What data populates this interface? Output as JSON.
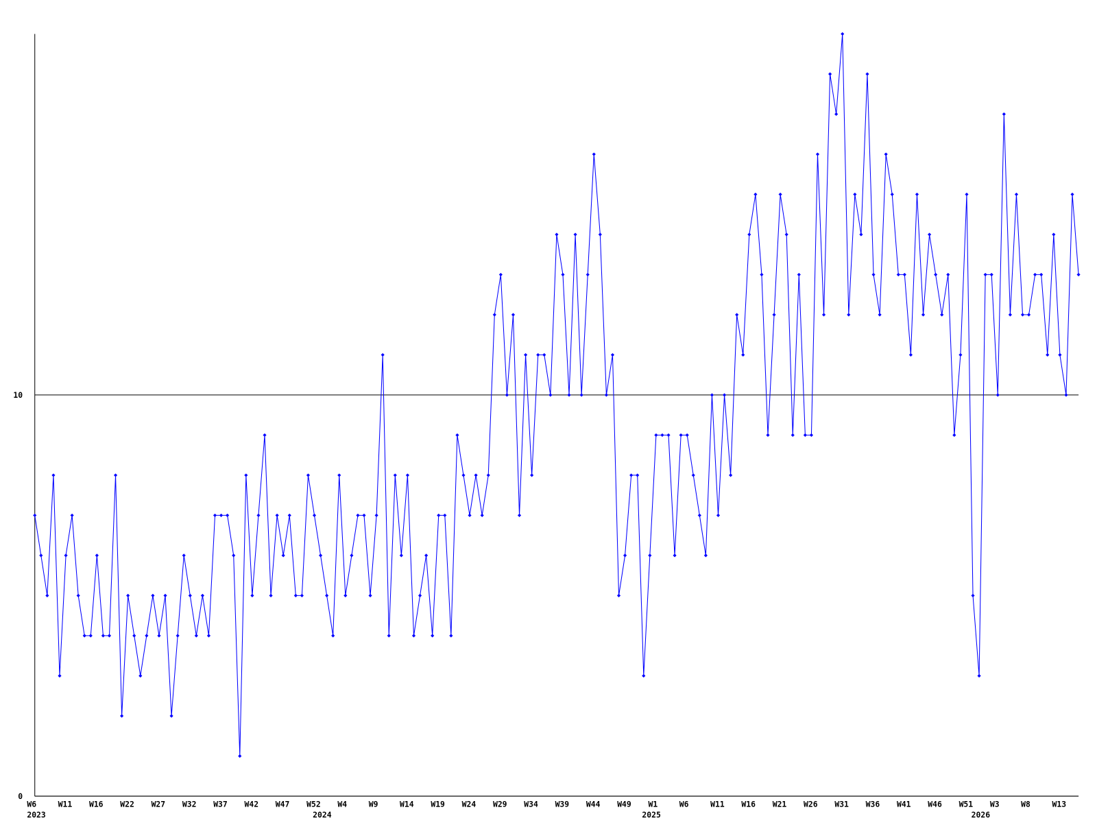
{
  "chart_data": {
    "type": "line",
    "color": "#0000ff",
    "categories": [
      "W6",
      null,
      null,
      null,
      null,
      "W11",
      null,
      null,
      null,
      null,
      "W16",
      null,
      null,
      null,
      null,
      "W22",
      null,
      null,
      null,
      null,
      "W27",
      null,
      null,
      null,
      null,
      "W32",
      null,
      null,
      null,
      null,
      "W37",
      null,
      null,
      null,
      null,
      "W42",
      null,
      null,
      null,
      null,
      "W47",
      null,
      null,
      null,
      null,
      "W52",
      null,
      null,
      null,
      null,
      "W4",
      null,
      null,
      null,
      null,
      "W9",
      null,
      null,
      null,
      null,
      "W14",
      null,
      null,
      null,
      null,
      "W19",
      null,
      null,
      null,
      null,
      "W24",
      null,
      null,
      null,
      null,
      "W29",
      null,
      null,
      null,
      null,
      "W34",
      null,
      null,
      null,
      null,
      "W39",
      null,
      null,
      null,
      null,
      "W44",
      null,
      null,
      null,
      null,
      "W49",
      null,
      null,
      null,
      null,
      "W1",
      null,
      null,
      null,
      null,
      "W6",
      null,
      null,
      null,
      null,
      "W11",
      null,
      null,
      null,
      null,
      "W16",
      null,
      null,
      null,
      null,
      "W21",
      null,
      null,
      null,
      null,
      "W26",
      null,
      null,
      null,
      null,
      "W31",
      null,
      null,
      null,
      null,
      "W36",
      null,
      null,
      null,
      null,
      "W41",
      null,
      null,
      null,
      null,
      "W46",
      null,
      null,
      null,
      null,
      "W51",
      null,
      null,
      null,
      null,
      "W3",
      null,
      null,
      null,
      null,
      "W8",
      null,
      null,
      null,
      null,
      "W13",
      null,
      null,
      null
    ],
    "category_years": [
      "2023",
      null,
      null,
      null,
      null,
      null,
      null,
      null,
      null,
      null,
      null,
      null,
      null,
      null,
      null,
      null,
      null,
      null,
      null,
      null,
      null,
      null,
      null,
      null,
      null,
      null,
      null,
      null,
      null,
      null,
      null,
      null,
      null,
      null,
      null,
      null,
      null,
      null,
      null,
      null,
      null,
      null,
      null,
      null,
      null,
      null,
      "2024",
      null,
      null,
      null,
      null,
      null,
      null,
      null,
      null,
      null,
      null,
      null,
      null,
      null,
      null,
      null,
      null,
      null,
      null,
      null,
      null,
      null,
      null,
      null,
      null,
      null,
      null,
      null,
      null,
      null,
      null,
      null,
      null,
      null,
      null,
      null,
      null,
      null,
      null,
      null,
      null,
      null,
      null,
      null,
      null,
      null,
      null,
      null,
      null,
      null,
      null,
      null,
      null,
      "2025",
      null,
      null,
      null,
      null,
      null,
      null,
      null,
      null,
      null,
      null,
      null,
      null,
      null,
      null,
      null,
      null,
      null,
      null,
      null,
      null,
      null,
      null,
      null,
      null,
      null,
      null,
      null,
      null,
      null,
      null,
      null,
      null,
      null,
      null,
      null,
      null,
      null,
      null,
      null,
      null,
      null,
      null,
      null,
      null,
      null,
      null,
      null,
      null,
      null,
      null,
      null,
      null,
      "2026",
      null,
      null,
      null,
      null,
      null,
      null,
      null,
      null,
      null,
      null,
      null,
      null,
      null,
      null,
      null,
      null
    ],
    "values": [
      7,
      6,
      5,
      8,
      3,
      6,
      7,
      5,
      4,
      4,
      6,
      4,
      4,
      8,
      2,
      5,
      4,
      3,
      4,
      5,
      4,
      5,
      2,
      4,
      6,
      5,
      4,
      5,
      4,
      7,
      7,
      7,
      6,
      1,
      8,
      5,
      7,
      9,
      5,
      7,
      6,
      7,
      5,
      5,
      8,
      7,
      6,
      5,
      4,
      8,
      5,
      6,
      7,
      7,
      5,
      7,
      11,
      4,
      8,
      6,
      8,
      4,
      5,
      6,
      4,
      7,
      7,
      4,
      9,
      8,
      7,
      8,
      7,
      8,
      12,
      13,
      10,
      12,
      7,
      11,
      8,
      11,
      11,
      10,
      14,
      13,
      10,
      14,
      10,
      13,
      16,
      14,
      10,
      11,
      5,
      6,
      8,
      8,
      3,
      6,
      9,
      9,
      9,
      6,
      9,
      9,
      8,
      7,
      6,
      10,
      7,
      10,
      8,
      12,
      11,
      14,
      15,
      13,
      9,
      12,
      15,
      14,
      9,
      13,
      9,
      9,
      16,
      12,
      18,
      17,
      19,
      12,
      15,
      14,
      18,
      13,
      12,
      16,
      15,
      13,
      13,
      11,
      15,
      12,
      14,
      13,
      12,
      13,
      9,
      11,
      15,
      5,
      3,
      13,
      13,
      10,
      17,
      12,
      15,
      12,
      12,
      13,
      13,
      11,
      14,
      11,
      10,
      15,
      13
    ],
    "ylim": [
      0,
      19
    ],
    "yticks": [
      0,
      10
    ],
    "grid": true
  }
}
